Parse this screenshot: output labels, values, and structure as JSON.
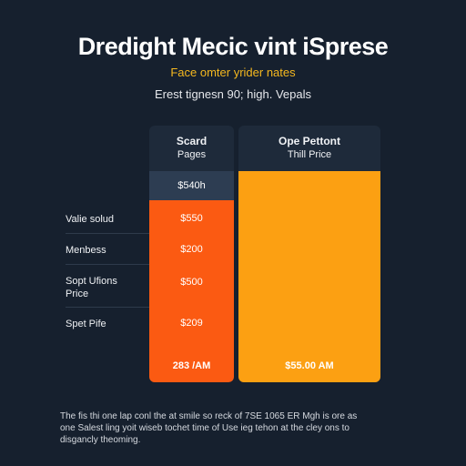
{
  "header": {
    "title": "Dredight Mecic vint iSprese",
    "subtitle": "Face omter yrider nates",
    "tagline": "Erest tignesn 90; high. Vepals"
  },
  "left_column": {
    "header_line1": "Scard",
    "header_line2": "Pages",
    "price": "$540h",
    "values": [
      "$550",
      "$200",
      "$500",
      "$209"
    ],
    "footer": "283 /AM"
  },
  "right_column": {
    "header_line1": "Ope Pettont",
    "header_line2": "Thill Price",
    "footer": "$55.00 AM"
  },
  "row_labels": [
    "Valie solud",
    "Menbess",
    "Sopt Ufions Price",
    "Spet Pife"
  ],
  "footnote": "The fis thi one lap conl the at smile so reck of 7SE 1065 ER Mgh is ore as one Salest ling yoit wiseb tochet time of Use ieg tehon at the cley ons to disgancly theoming.",
  "colors": {
    "background": "#16202e",
    "orange_red": "#fb5a12",
    "orange": "#fca012",
    "accent_yellow": "#f5b81f"
  }
}
